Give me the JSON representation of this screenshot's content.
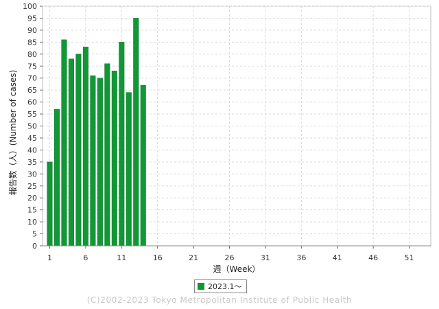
{
  "chart_data": {
    "type": "bar",
    "x": [
      1,
      2,
      3,
      4,
      5,
      6,
      7,
      8,
      9,
      10,
      11,
      12,
      13,
      14
    ],
    "series": [
      {
        "name": "2023.1～",
        "color": "#129737",
        "values": [
          35,
          57,
          86,
          78,
          80,
          83,
          71,
          70,
          76,
          73,
          85,
          64,
          95,
          67
        ]
      }
    ],
    "xticks": [
      1,
      6,
      11,
      16,
      21,
      26,
      31,
      36,
      41,
      46,
      51
    ],
    "xlim": [
      0,
      54
    ],
    "yticks": [
      0,
      5,
      10,
      15,
      20,
      25,
      30,
      35,
      40,
      45,
      50,
      55,
      60,
      65,
      70,
      75,
      80,
      85,
      90,
      95,
      100
    ],
    "ylim": [
      0,
      100
    ],
    "xlabel": "週（Week）",
    "ylabel": "報告数（人）(Number of cases)",
    "grid": true,
    "legend_position": "bottom-center"
  },
  "footer": {
    "text": "(C)2002-2023 Tokyo Metropolitan Institute of Public Health"
  }
}
